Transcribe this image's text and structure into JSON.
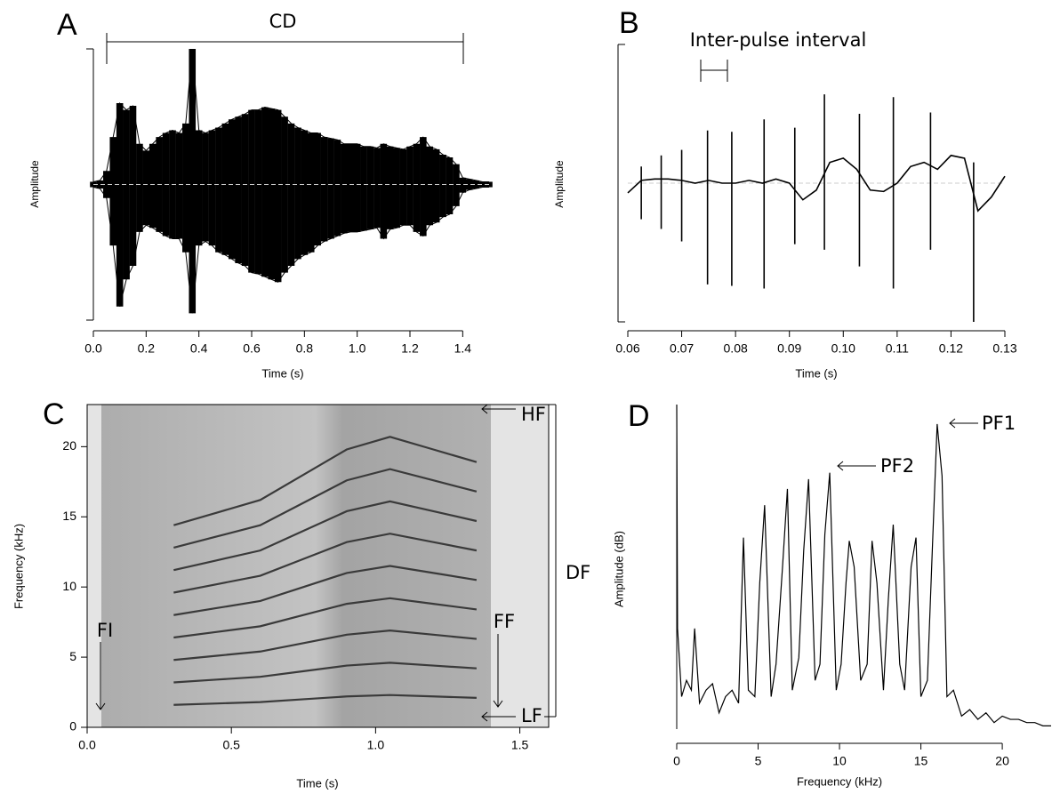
{
  "chart_data": [
    {
      "type": "waveform-envelope",
      "label": "A",
      "xlabel": "Time (s)",
      "ylabel": "Amplitude",
      "annotations": [
        "CD"
      ],
      "xlim": [
        0,
        1.5
      ],
      "ylim": [
        -1,
        1
      ],
      "xticks": [
        {
          "value": 0,
          "label": "0.0"
        },
        {
          "value": 0.2,
          "label": "0.2"
        },
        {
          "value": 0.4,
          "label": "0.4"
        },
        {
          "value": 0.6,
          "label": "0.6"
        },
        {
          "value": 0.8,
          "label": "0.8"
        },
        {
          "value": 1.0,
          "label": "1.0"
        },
        {
          "value": 1.2,
          "label": "1.2"
        },
        {
          "value": 1.4,
          "label": "1.4"
        }
      ],
      "color": "#000000",
      "x": [
        0,
        0.025,
        0.05,
        0.075,
        0.1,
        0.125,
        0.15,
        0.175,
        0.2,
        0.225,
        0.25,
        0.275,
        0.3,
        0.325,
        0.35,
        0.375,
        0.4,
        0.425,
        0.45,
        0.475,
        0.5,
        0.525,
        0.55,
        0.575,
        0.6,
        0.625,
        0.65,
        0.675,
        0.7,
        0.725,
        0.75,
        0.775,
        0.8,
        0.825,
        0.85,
        0.875,
        0.9,
        0.925,
        0.95,
        0.975,
        1.0,
        1.025,
        1.05,
        1.075,
        1.1,
        1.125,
        1.15,
        1.175,
        1.2,
        1.225,
        1.25,
        1.275,
        1.3,
        1.325,
        1.35,
        1.375,
        1.4,
        1.425,
        1.45,
        1.475,
        1.5
      ],
      "upper": [
        0.02,
        0.03,
        0.1,
        0.35,
        0.6,
        0.55,
        0.58,
        0.3,
        0.25,
        0.3,
        0.35,
        0.38,
        0.4,
        0.38,
        0.45,
        1.0,
        0.4,
        0.38,
        0.4,
        0.42,
        0.45,
        0.48,
        0.5,
        0.52,
        0.55,
        0.55,
        0.57,
        0.56,
        0.55,
        0.5,
        0.45,
        0.42,
        0.4,
        0.38,
        0.38,
        0.35,
        0.34,
        0.33,
        0.3,
        0.3,
        0.3,
        0.28,
        0.28,
        0.27,
        0.3,
        0.28,
        0.27,
        0.26,
        0.28,
        0.3,
        0.35,
        0.28,
        0.26,
        0.22,
        0.2,
        0.15,
        0.05,
        0.04,
        0.03,
        0.02,
        0.02
      ],
      "lower": [
        -0.02,
        -0.03,
        -0.1,
        -0.45,
        -0.9,
        -0.7,
        -0.6,
        -0.35,
        -0.3,
        -0.32,
        -0.35,
        -0.38,
        -0.4,
        -0.4,
        -0.5,
        -0.95,
        -0.45,
        -0.42,
        -0.45,
        -0.5,
        -0.52,
        -0.55,
        -0.58,
        -0.6,
        -0.65,
        -0.66,
        -0.68,
        -0.7,
        -0.72,
        -0.65,
        -0.6,
        -0.55,
        -0.52,
        -0.5,
        -0.45,
        -0.42,
        -0.4,
        -0.38,
        -0.36,
        -0.35,
        -0.35,
        -0.34,
        -0.33,
        -0.32,
        -0.4,
        -0.33,
        -0.32,
        -0.3,
        -0.3,
        -0.35,
        -0.38,
        -0.3,
        -0.28,
        -0.24,
        -0.22,
        -0.16,
        -0.06,
        -0.04,
        -0.03,
        -0.02,
        -0.02
      ]
    },
    {
      "type": "pulse-waveform",
      "label": "B",
      "xlabel": "Time (s)",
      "ylabel": "Amplitude",
      "annotations": [
        "Inter-pulse interval"
      ],
      "xlim": [
        0.06,
        0.13
      ],
      "ylim": [
        -1,
        1
      ],
      "xticks": [
        0.06,
        0.07,
        0.08,
        0.09,
        {
          "value": 0.1,
          "label": "0.10"
        },
        0.11,
        0.12,
        0.13
      ],
      "color": "#000000",
      "x": [
        0.06,
        0.0625,
        0.065,
        0.0675,
        0.07,
        0.0725,
        0.075,
        0.0775,
        0.08,
        0.0825,
        0.085,
        0.0875,
        0.09,
        0.0925,
        0.095,
        0.0975,
        0.1,
        0.1025,
        0.105,
        0.1075,
        0.11,
        0.1125,
        0.115,
        0.1175,
        0.12,
        0.1225,
        0.125,
        0.1275,
        0.13
      ],
      "values": [
        -0.07,
        0.02,
        0.03,
        0.03,
        0.02,
        0.0,
        0.02,
        0.0,
        0.0,
        0.02,
        0.0,
        0.03,
        0.0,
        -0.12,
        -0.05,
        0.15,
        0.18,
        0.1,
        -0.05,
        -0.06,
        0.0,
        0.12,
        0.15,
        0.1,
        0.2,
        0.18,
        -0.2,
        -0.1,
        0.05
      ],
      "pulse_times": [
        0.0625,
        0.0662,
        0.07,
        0.0748,
        0.0793,
        0.0853,
        0.091,
        0.0965,
        0.103,
        0.1093,
        0.1162,
        0.1242
      ],
      "pulse_max": [
        0.12,
        0.2,
        0.24,
        0.38,
        0.37,
        0.46,
        0.4,
        0.64,
        0.5,
        0.62,
        0.51,
        0.15
      ],
      "pulse_min": [
        -0.26,
        -0.33,
        -0.42,
        -0.73,
        -0.74,
        -0.76,
        -0.44,
        -0.48,
        -0.6,
        -0.76,
        -0.48,
        -1.0
      ]
    },
    {
      "type": "spectrogram",
      "label": "C",
      "xlabel": "Time (s)",
      "ylabel": "Frequency (kHz)",
      "annotations": [
        "FI",
        "FF",
        "HF",
        "LF",
        "DF"
      ],
      "xlim": [
        0,
        1.6
      ],
      "ylim": [
        0,
        23
      ],
      "xticks": [
        {
          "value": 0,
          "label": "0.0"
        },
        {
          "value": 0.5,
          "label": "0.5"
        },
        {
          "value": 1.0,
          "label": "1.0"
        },
        {
          "value": 1.5,
          "label": "1.5"
        }
      ],
      "yticks": [
        0,
        5,
        10,
        15,
        20
      ],
      "line_color": "#3a3a3a",
      "x": [
        0.3,
        0.45,
        0.6,
        0.75,
        0.9,
        1.05,
        1.2,
        1.35
      ],
      "series": [
        {
          "values": [
            1.6,
            1.7,
            1.8,
            2.0,
            2.2,
            2.3,
            2.2,
            2.1
          ]
        },
        {
          "values": [
            3.2,
            3.4,
            3.6,
            4.0,
            4.4,
            4.6,
            4.4,
            4.2
          ]
        },
        {
          "values": [
            4.8,
            5.1,
            5.4,
            6.0,
            6.6,
            6.9,
            6.6,
            6.3
          ]
        },
        {
          "values": [
            6.4,
            6.8,
            7.2,
            8.0,
            8.8,
            9.2,
            8.8,
            8.4
          ]
        },
        {
          "values": [
            8,
            8.5,
            9,
            10,
            11,
            11.5,
            11,
            10.5
          ]
        },
        {
          "values": [
            9.6,
            10.2,
            10.8,
            12,
            13.2,
            13.8,
            13.2,
            12.6
          ]
        },
        {
          "values": [
            11.2,
            11.9,
            12.6,
            14,
            15.4,
            16.1,
            15.4,
            14.7
          ]
        },
        {
          "values": [
            12.8,
            13.6,
            14.4,
            16,
            17.6,
            18.4,
            17.6,
            16.8
          ]
        },
        {
          "values": [
            14.4,
            15.3,
            16.2,
            18,
            19.8,
            20.7,
            19.8,
            18.9
          ]
        }
      ]
    },
    {
      "type": "line",
      "label": "D",
      "xlabel": "Frequency (kHz)",
      "ylabel": "Amplitude (dB)",
      "annotations": [
        "PF1",
        "PF2"
      ],
      "xlim": [
        0,
        23
      ],
      "ylim": [
        0,
        1
      ],
      "xticks": [
        0,
        5,
        10,
        15,
        20
      ],
      "color": "#000000",
      "x": [
        0,
        0.05,
        0.3,
        0.6,
        0.9,
        1.1,
        1.4,
        1.8,
        2.2,
        2.6,
        3.0,
        3.4,
        3.8,
        4.1,
        4.4,
        4.8,
        5.1,
        5.4,
        5.8,
        6.1,
        6.5,
        6.8,
        7.1,
        7.5,
        7.8,
        8.1,
        8.5,
        8.8,
        9.1,
        9.4,
        9.8,
        10.1,
        10.4,
        10.6,
        10.9,
        11.3,
        11.7,
        12.0,
        12.3,
        12.7,
        13.0,
        13.3,
        13.7,
        14.0,
        14.4,
        14.7,
        15.0,
        15.4,
        15.7,
        16.0,
        16.3,
        16.6,
        17.0,
        17.5,
        18.0,
        18.5,
        19.0,
        19.5,
        20.0,
        20.5,
        21.0,
        21.5,
        22.0,
        22.5,
        23.0
      ],
      "values": [
        1.0,
        0.31,
        0.1,
        0.15,
        0.12,
        0.31,
        0.08,
        0.12,
        0.14,
        0.05,
        0.1,
        0.12,
        0.08,
        0.59,
        0.12,
        0.1,
        0.45,
        0.69,
        0.1,
        0.2,
        0.5,
        0.74,
        0.12,
        0.22,
        0.55,
        0.77,
        0.15,
        0.2,
        0.6,
        0.79,
        0.12,
        0.2,
        0.45,
        0.58,
        0.5,
        0.15,
        0.2,
        0.58,
        0.45,
        0.12,
        0.4,
        0.63,
        0.2,
        0.12,
        0.5,
        0.59,
        0.1,
        0.15,
        0.55,
        0.94,
        0.78,
        0.1,
        0.12,
        0.04,
        0.06,
        0.03,
        0.05,
        0.02,
        0.04,
        0.03,
        0.03,
        0.02,
        0.02,
        0.01,
        0.01
      ]
    }
  ]
}
